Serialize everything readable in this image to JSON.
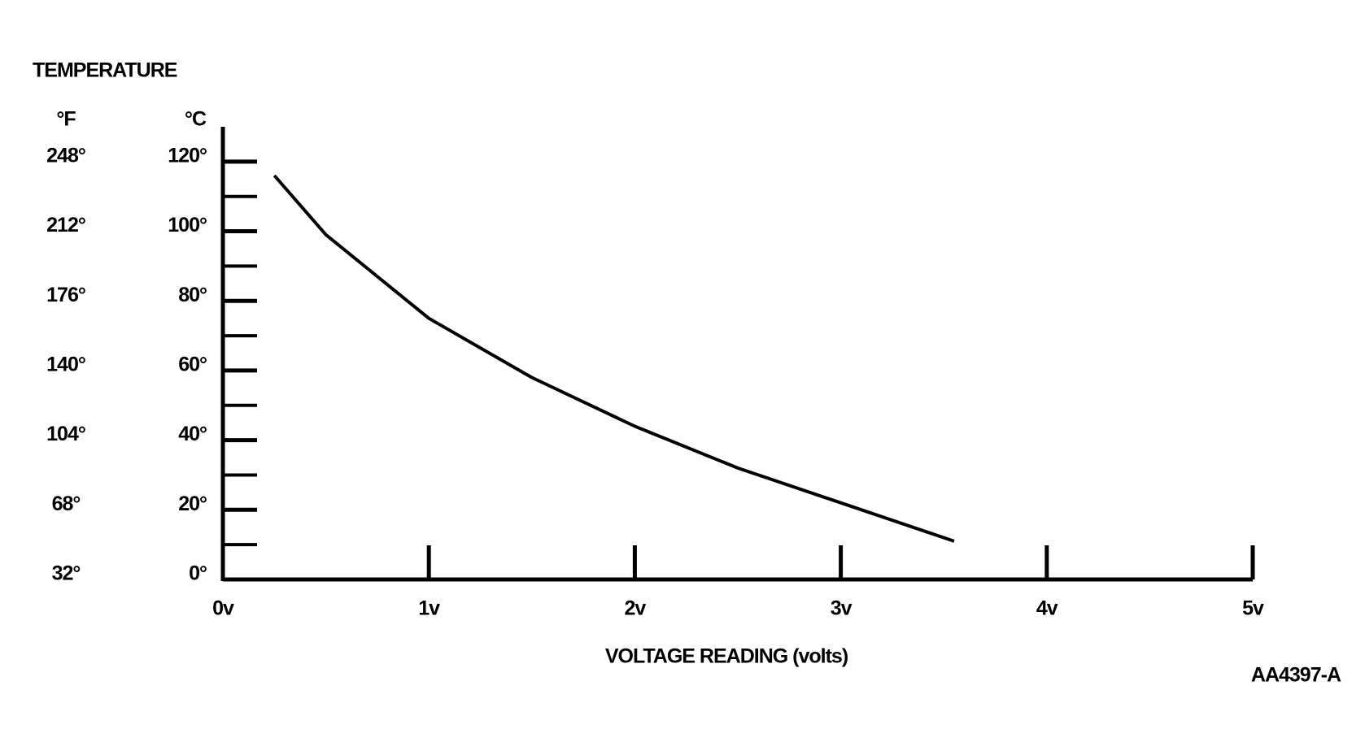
{
  "chart_data": {
    "type": "line",
    "y_title": "TEMPERATURE",
    "y_unit_label": "°C",
    "y2_unit_label": "°F",
    "x_title": "VOLTAGE READING (volts)",
    "figure_id": "AA4397-A",
    "x": [
      0.25,
      0.5,
      1,
      1.5,
      2,
      2.5,
      3,
      3.55
    ],
    "series": [
      {
        "color": "#000000",
        "values": [
          116,
          99,
          75,
          58,
          44,
          32,
          22,
          11
        ]
      }
    ],
    "xlim": [
      0,
      5
    ],
    "xticks": [
      {
        "value": 0,
        "label": "0v"
      },
      {
        "value": 1,
        "label": "1v"
      },
      {
        "value": 2,
        "label": "2v"
      },
      {
        "value": 3,
        "label": "3v"
      },
      {
        "value": 4,
        "label": "4v"
      },
      {
        "value": 5,
        "label": "5v"
      }
    ],
    "ylim": [
      0,
      130
    ],
    "yticks": [
      {
        "value": 0,
        "label": "0°"
      },
      {
        "value": 20,
        "label": "20°"
      },
      {
        "value": 40,
        "label": "40°"
      },
      {
        "value": 60,
        "label": "60°"
      },
      {
        "value": 80,
        "label": "80°"
      },
      {
        "value": 100,
        "label": "100°"
      },
      {
        "value": 120,
        "label": "120°"
      }
    ],
    "minor_yticks": [
      10,
      30,
      50,
      70,
      90,
      110
    ],
    "y2lim": [
      32,
      266
    ],
    "y2ticks": [
      {
        "value": 32,
        "label": "32°"
      },
      {
        "value": 68,
        "label": "68°"
      },
      {
        "value": 104,
        "label": "104°"
      },
      {
        "value": 140,
        "label": "140°"
      },
      {
        "value": 176,
        "label": "176°"
      },
      {
        "value": 212,
        "label": "212°"
      },
      {
        "value": 248,
        "label": "248°"
      }
    ],
    "grid": false
  }
}
